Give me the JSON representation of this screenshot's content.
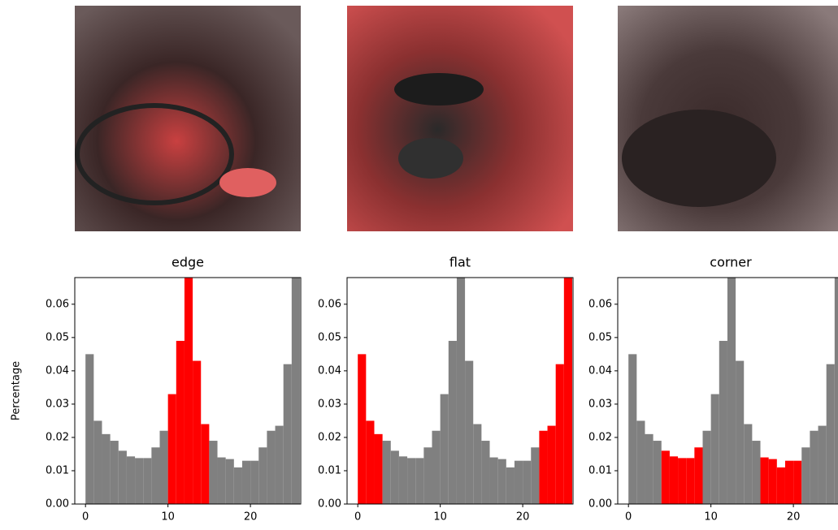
{
  "chart_data": [
    {
      "type": "histogram",
      "title": "edge",
      "ylabel": "Percentage",
      "bins": [
        0,
        1,
        2,
        3,
        4,
        5,
        6,
        7,
        8,
        9,
        10,
        11,
        12,
        13,
        14,
        15,
        16,
        17,
        18,
        19,
        20,
        21,
        22,
        23,
        24,
        25,
        26
      ],
      "values": [
        0.045,
        0.025,
        0.021,
        0.019,
        0.016,
        0.0143,
        0.0138,
        0.0138,
        0.017,
        0.022,
        0.033,
        0.049,
        0.068,
        0.043,
        0.024,
        0.019,
        0.014,
        0.0135,
        0.011,
        0.013,
        0.013,
        0.017,
        0.022,
        0.0235,
        0.042,
        0.068
      ],
      "colors": [
        "#808080",
        "#808080",
        "#808080",
        "#808080",
        "#808080",
        "#808080",
        "#808080",
        "#808080",
        "#808080",
        "#808080",
        "#ff0000",
        "#ff0000",
        "#ff0000",
        "#ff0000",
        "#ff0000",
        "#808080",
        "#808080",
        "#808080",
        "#808080",
        "#808080",
        "#808080",
        "#808080",
        "#808080",
        "#808080",
        "#808080",
        "#808080"
      ],
      "xlim": [
        -1.3,
        26.1
      ],
      "xticks": [
        0,
        10,
        20
      ],
      "ylim": [
        0,
        0.068
      ],
      "yticks": [
        {
          "value": 0,
          "label": "0.00"
        },
        {
          "value": 0.01,
          "label": "0.01"
        },
        {
          "value": 0.02,
          "label": "0.02"
        },
        {
          "value": 0.03,
          "label": "0.03"
        },
        {
          "value": 0.04,
          "label": "0.04"
        },
        {
          "value": 0.05,
          "label": "0.05"
        },
        {
          "value": 0.06,
          "label": "0.06"
        }
      ]
    },
    {
      "type": "histogram",
      "title": "flat",
      "bins": [
        0,
        1,
        2,
        3,
        4,
        5,
        6,
        7,
        8,
        9,
        10,
        11,
        12,
        13,
        14,
        15,
        16,
        17,
        18,
        19,
        20,
        21,
        22,
        23,
        24,
        25,
        26
      ],
      "values": [
        0.045,
        0.025,
        0.021,
        0.019,
        0.016,
        0.0143,
        0.0138,
        0.0138,
        0.017,
        0.022,
        0.033,
        0.049,
        0.068,
        0.043,
        0.024,
        0.019,
        0.014,
        0.0135,
        0.011,
        0.013,
        0.013,
        0.017,
        0.022,
        0.0235,
        0.042,
        0.068
      ],
      "colors": [
        "#ff0000",
        "#ff0000",
        "#ff0000",
        "#808080",
        "#808080",
        "#808080",
        "#808080",
        "#808080",
        "#808080",
        "#808080",
        "#808080",
        "#808080",
        "#808080",
        "#808080",
        "#808080",
        "#808080",
        "#808080",
        "#808080",
        "#808080",
        "#808080",
        "#808080",
        "#808080",
        "#ff0000",
        "#ff0000",
        "#ff0000",
        "#ff0000"
      ],
      "xlim": [
        -1.3,
        26.1
      ],
      "xticks": [
        0,
        10,
        20
      ],
      "ylim": [
        0,
        0.068
      ],
      "yticks": [
        {
          "value": 0,
          "label": "0.00"
        },
        {
          "value": 0.01,
          "label": "0.01"
        },
        {
          "value": 0.02,
          "label": "0.02"
        },
        {
          "value": 0.03,
          "label": "0.03"
        },
        {
          "value": 0.04,
          "label": "0.04"
        },
        {
          "value": 0.05,
          "label": "0.05"
        },
        {
          "value": 0.06,
          "label": "0.06"
        }
      ]
    },
    {
      "type": "histogram",
      "title": "corner",
      "bins": [
        0,
        1,
        2,
        3,
        4,
        5,
        6,
        7,
        8,
        9,
        10,
        11,
        12,
        13,
        14,
        15,
        16,
        17,
        18,
        19,
        20,
        21,
        22,
        23,
        24,
        25,
        26
      ],
      "values": [
        0.045,
        0.025,
        0.021,
        0.019,
        0.016,
        0.0143,
        0.0138,
        0.0138,
        0.017,
        0.022,
        0.033,
        0.049,
        0.068,
        0.043,
        0.024,
        0.019,
        0.014,
        0.0135,
        0.011,
        0.013,
        0.013,
        0.017,
        0.022,
        0.0235,
        0.042,
        0.068
      ],
      "colors": [
        "#808080",
        "#808080",
        "#808080",
        "#808080",
        "#ff0000",
        "#ff0000",
        "#ff0000",
        "#ff0000",
        "#ff0000",
        "#808080",
        "#808080",
        "#808080",
        "#808080",
        "#808080",
        "#808080",
        "#808080",
        "#ff0000",
        "#ff0000",
        "#ff0000",
        "#ff0000",
        "#ff0000",
        "#808080",
        "#808080",
        "#808080",
        "#808080",
        "#808080"
      ],
      "xlim": [
        -1.3,
        26.1
      ],
      "xticks": [
        0,
        10,
        20
      ],
      "ylim": [
        0,
        0.068
      ],
      "yticks": [
        {
          "value": 0,
          "label": "0.00"
        },
        {
          "value": 0.01,
          "label": "0.01"
        },
        {
          "value": 0.02,
          "label": "0.02"
        },
        {
          "value": 0.03,
          "label": "0.03"
        },
        {
          "value": 0.04,
          "label": "0.04"
        },
        {
          "value": 0.05,
          "label": "0.05"
        },
        {
          "value": 0.06,
          "label": "0.06"
        }
      ]
    }
  ]
}
